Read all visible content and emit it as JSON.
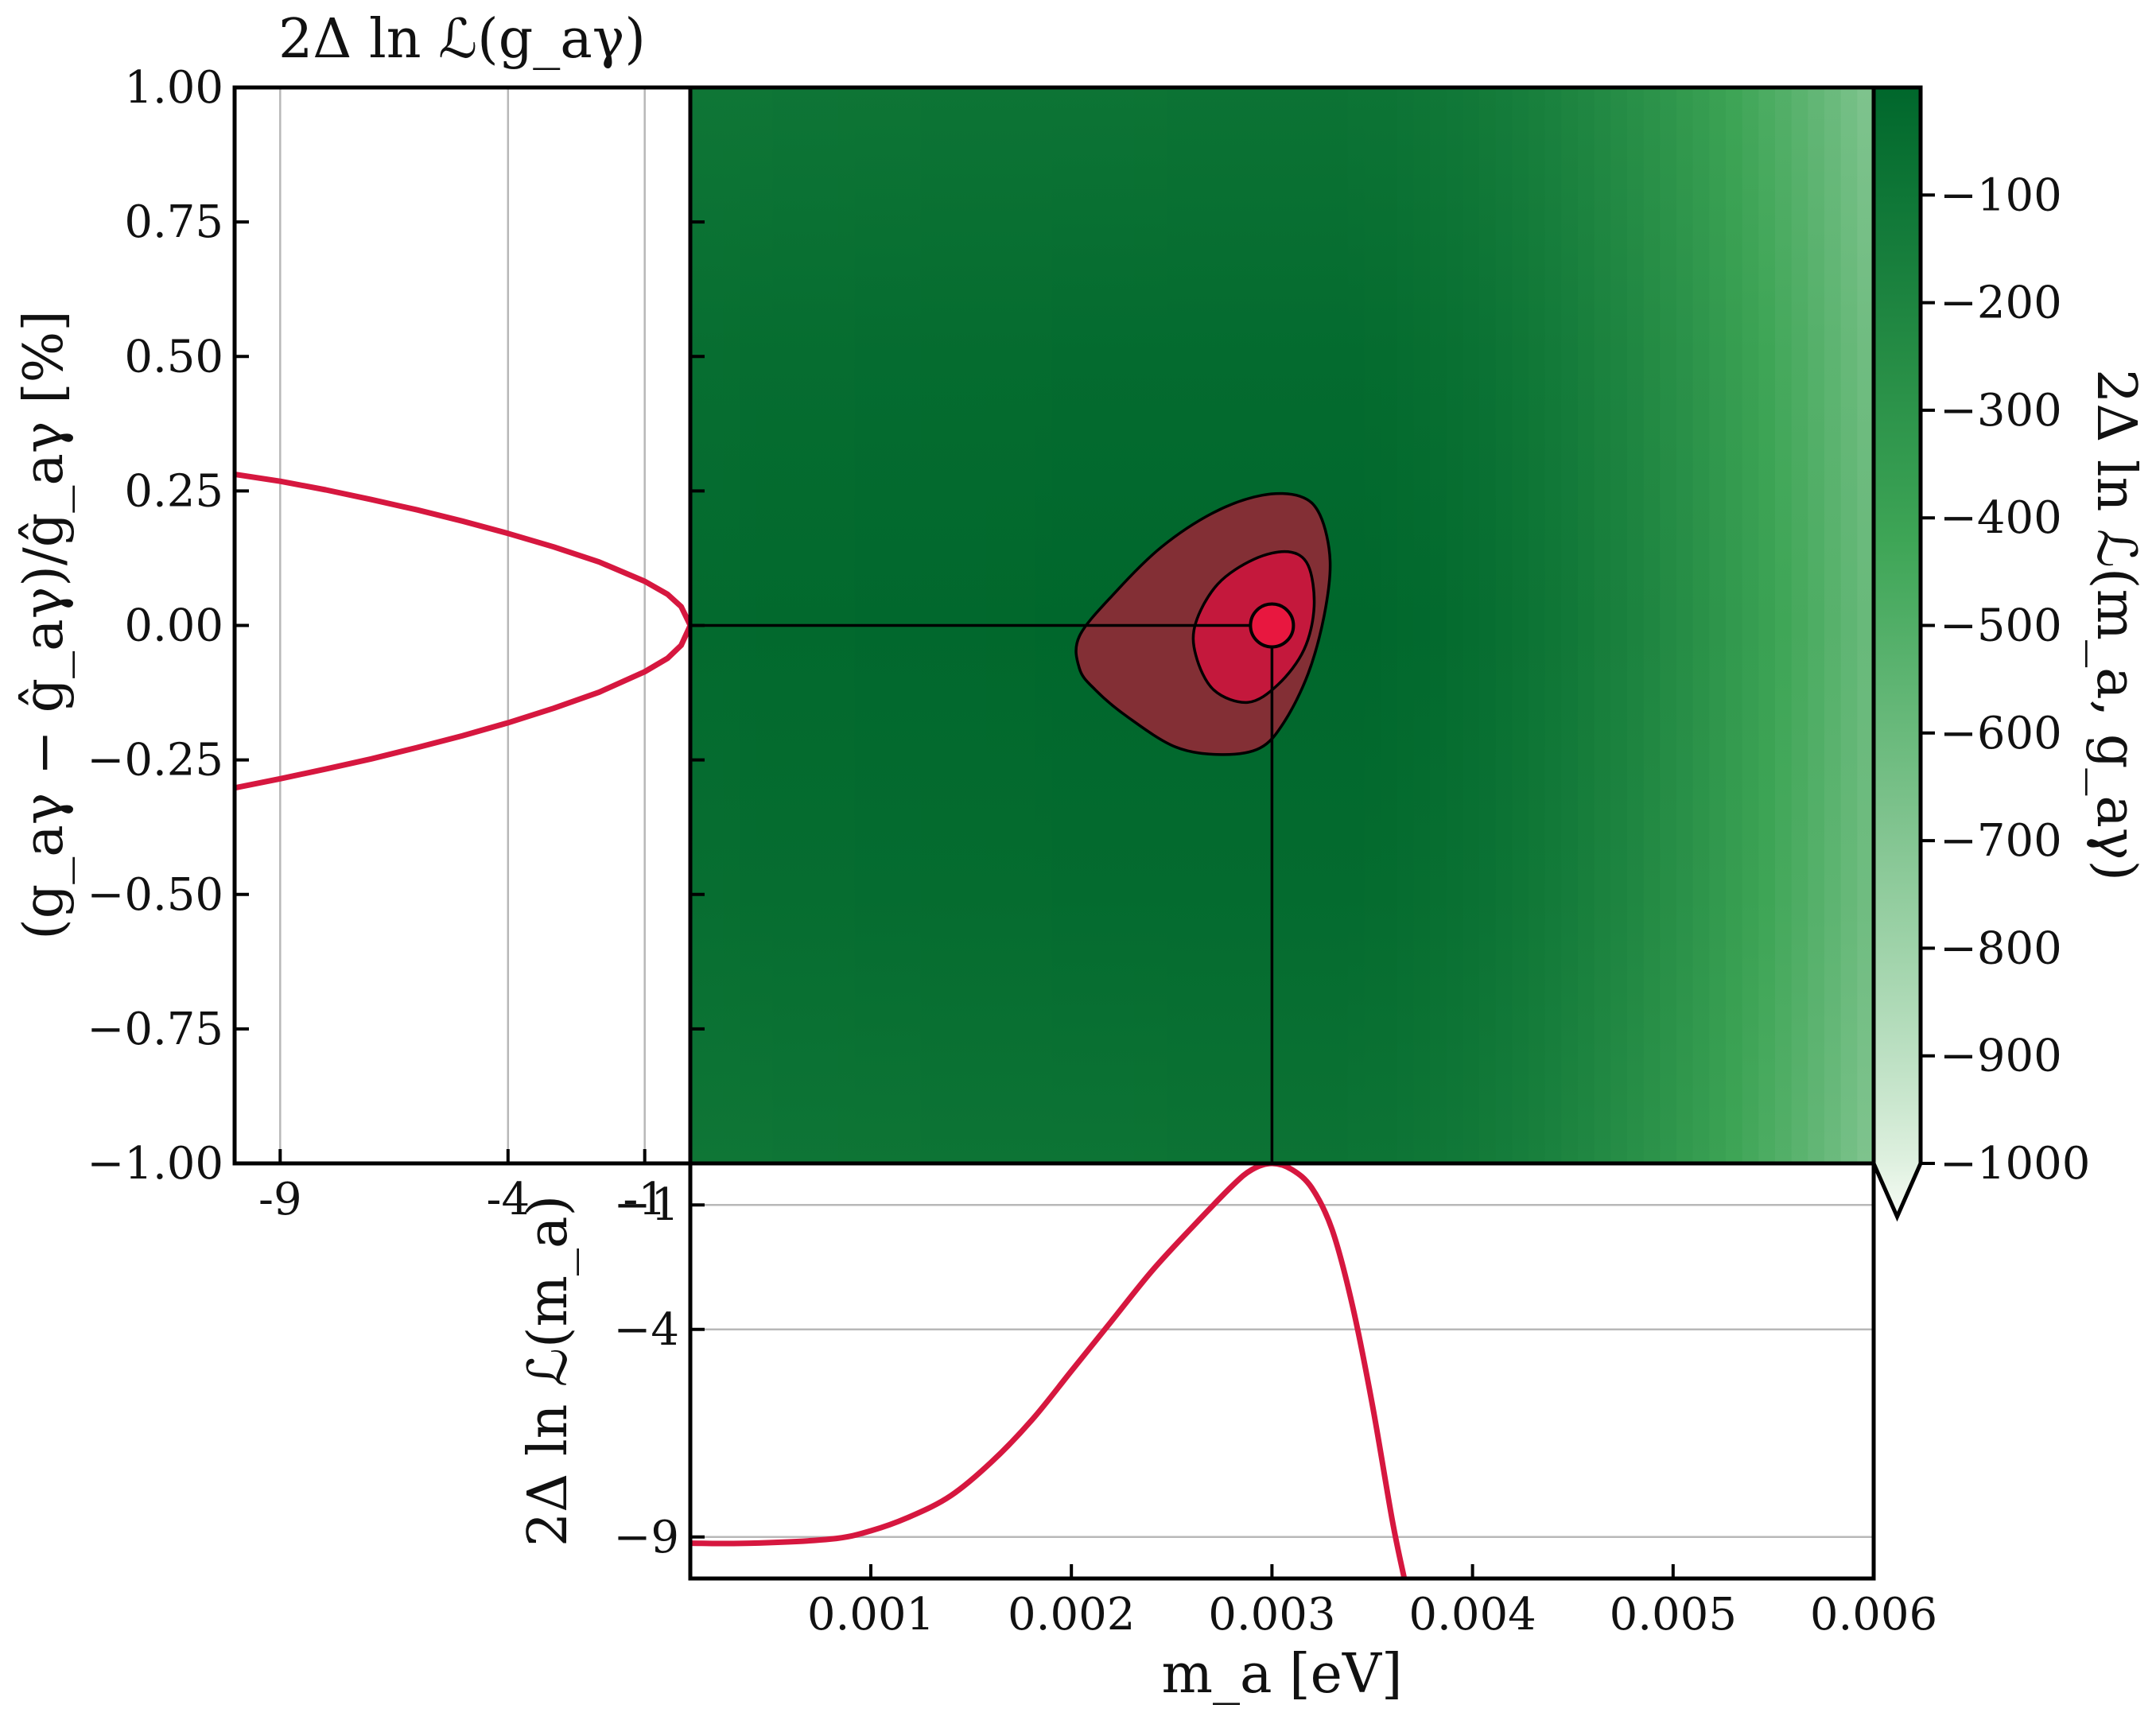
{
  "chart_data": [
    {
      "panel": "main",
      "type": "heatmap",
      "title": "",
      "xlabel": "",
      "ylabel": "(g_aγ − ĝ_aγ)/ĝ_aγ [%]",
      "xlim": [
        0.0001,
        0.006
      ],
      "ylim": [
        -1.0,
        1.0
      ],
      "yticks": [
        "1.00",
        "0.75",
        "0.50",
        "0.25",
        "0.00",
        "−0.25",
        "−0.50",
        "−0.75",
        "−1.00"
      ],
      "best_fit": {
        "x": 0.003,
        "y": 0.0
      },
      "contours": [
        {
          "level": "inner",
          "color": "#c4183c",
          "points": [
            [
              0.00262,
              0.005
            ],
            [
              0.00273,
              0.077
            ],
            [
              0.00291,
              0.123
            ],
            [
              0.00308,
              0.137
            ],
            [
              0.00318,
              0.112
            ],
            [
              0.00321,
              0.035
            ],
            [
              0.00316,
              -0.045
            ],
            [
              0.00303,
              -0.11
            ],
            [
              0.00288,
              -0.143
            ],
            [
              0.00271,
              -0.12
            ],
            [
              0.00262,
              -0.055
            ]
          ]
        },
        {
          "level": "outer",
          "color": "#832f35",
          "points": [
            [
              0.00204,
              -0.02
            ],
            [
              0.00222,
              0.062
            ],
            [
              0.00245,
              0.146
            ],
            [
              0.00271,
              0.21
            ],
            [
              0.00295,
              0.242
            ],
            [
              0.00314,
              0.24
            ],
            [
              0.00324,
              0.205
            ],
            [
              0.00329,
              0.12
            ],
            [
              0.00326,
              0.018
            ],
            [
              0.00318,
              -0.09
            ],
            [
              0.00306,
              -0.18
            ],
            [
              0.00294,
              -0.228
            ],
            [
              0.00275,
              -0.24
            ],
            [
              0.00252,
              -0.226
            ],
            [
              0.00228,
              -0.17
            ],
            [
              0.00212,
              -0.12
            ],
            [
              0.00204,
              -0.08
            ]
          ]
        }
      ]
    },
    {
      "panel": "left-profile",
      "type": "line",
      "title": "2Δ ln ℒ(g_aγ)",
      "xlabel": "",
      "ylabel": "",
      "xlim": [
        -10,
        0
      ],
      "xticks": [
        "-9",
        "-4",
        "-1"
      ],
      "x_grid": [
        -9,
        -4,
        -1
      ],
      "series": [
        {
          "x": [
            -10,
            -9,
            -8,
            -7,
            -6,
            -5,
            -4,
            -3,
            -2,
            -1,
            -0.5,
            -0.2,
            0,
            -0.2,
            -0.5,
            -1,
            -2,
            -3,
            -4,
            -5,
            -6,
            -7,
            -8,
            -9,
            -10
          ],
          "y": [
            0.281,
            0.268,
            0.252,
            0.234,
            0.215,
            0.194,
            0.171,
            0.146,
            0.118,
            0.082,
            0.058,
            0.035,
            0.0,
            -0.037,
            -0.061,
            -0.086,
            -0.124,
            -0.154,
            -0.181,
            -0.205,
            -0.227,
            -0.248,
            -0.267,
            -0.285,
            -0.302
          ]
        }
      ]
    },
    {
      "panel": "bottom-profile",
      "type": "line",
      "title": "",
      "xlabel": "m_a [eV]",
      "ylabel": "2Δ ln ℒ(m_a)",
      "xlim": [
        0.0001,
        0.006
      ],
      "ylim": [
        -10.0,
        0.0
      ],
      "xticks": [
        "0.001",
        "0.002",
        "0.003",
        "0.004",
        "0.005",
        "0.006"
      ],
      "yticks": [
        "−1",
        "−4",
        "−9"
      ],
      "y_grid": [
        -1,
        -4,
        -9
      ],
      "series": [
        {
          "x": [
            0.0001,
            0.0004,
            0.0008,
            0.001,
            0.0012,
            0.0014,
            0.0016,
            0.0018,
            0.002,
            0.0022,
            0.0024,
            0.0026,
            0.0028,
            0.0029,
            0.003,
            0.0031,
            0.0032,
            0.0033,
            0.0034,
            0.0035,
            0.0036,
            0.00366
          ],
          "y": [
            -9.15,
            -9.15,
            -9.05,
            -8.85,
            -8.5,
            -8.0,
            -7.2,
            -6.2,
            -5.0,
            -3.8,
            -2.6,
            -1.55,
            -0.55,
            -0.15,
            0.0,
            -0.15,
            -0.6,
            -1.6,
            -3.4,
            -5.8,
            -8.6,
            -10.0
          ]
        }
      ]
    },
    {
      "panel": "colorbar",
      "type": "heatmap",
      "title": "",
      "xlabel": "",
      "ylabel": "2Δ ln ℒ(m_a, g_aγ)",
      "range": [
        -1000,
        0
      ],
      "ticks": [
        "−100",
        "−200",
        "−300",
        "−400",
        "−500",
        "−600",
        "−700",
        "−800",
        "−900",
        "−1000"
      ],
      "extend": "min",
      "colors": {
        "high": "#00672c",
        "mid": "#3ea556",
        "low": "#f7fcf5"
      }
    }
  ]
}
